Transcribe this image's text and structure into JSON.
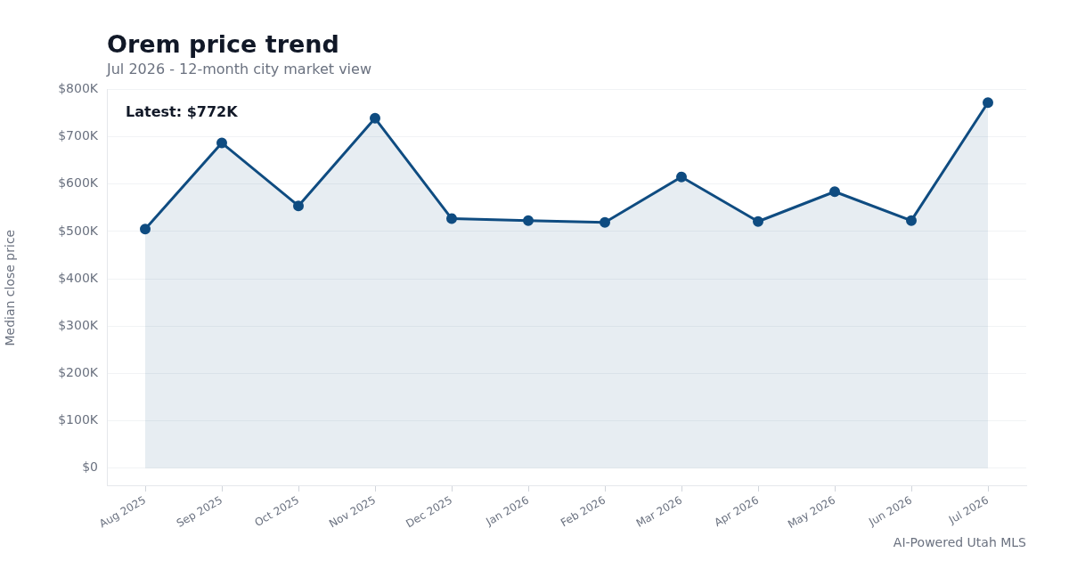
{
  "chart_data": {
    "type": "area",
    "title": "Orem price trend",
    "subtitle": "Jul 2026 - 12-month city market view",
    "ylabel": "Median close price",
    "categories": [
      "Aug 2025",
      "Sep 2025",
      "Oct 2025",
      "Nov 2025",
      "Dec 2025",
      "Jan 2026",
      "Feb 2026",
      "Mar 2026",
      "Apr 2026",
      "May 2026",
      "Jun 2026",
      "Jul 2026"
    ],
    "series": [
      {
        "color": "#0f4c81",
        "values": [
          505,
          687,
          554,
          739,
          527,
          523,
          519,
          615,
          521,
          584,
          523,
          772
        ]
      }
    ],
    "ylim": [
      -38,
      800
    ],
    "yticks": [
      {
        "value": 0,
        "label": "$0"
      },
      {
        "value": 100,
        "label": "$100K"
      },
      {
        "value": 200,
        "label": "$200K"
      },
      {
        "value": 300,
        "label": "$300K"
      },
      {
        "value": 400,
        "label": "$400K"
      },
      {
        "value": 500,
        "label": "$500K"
      },
      {
        "value": 600,
        "label": "$600K"
      },
      {
        "value": 700,
        "label": "$700K"
      },
      {
        "value": 800,
        "label": "$800K"
      }
    ],
    "grid": "y",
    "legend": false,
    "marker": "circle",
    "line_style": "solid",
    "annotations": [
      "Latest: $772K",
      "AI-Powered Utah MLS"
    ]
  }
}
